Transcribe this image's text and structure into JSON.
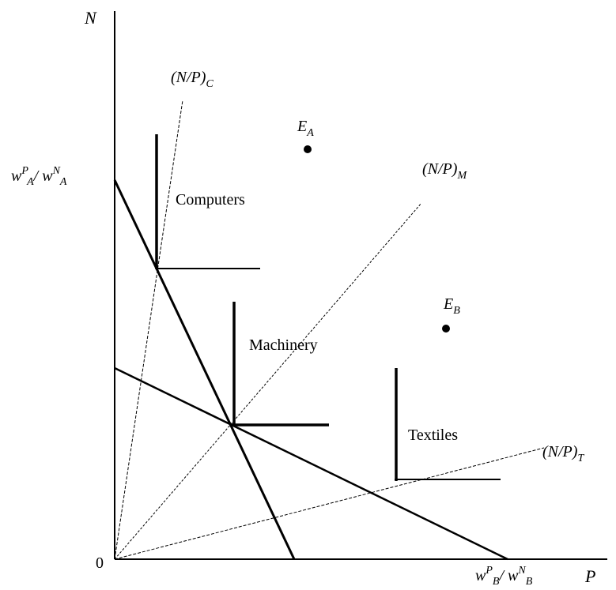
{
  "axes": {
    "y_label": "N",
    "x_label": "P",
    "origin_label": "0"
  },
  "rays": {
    "computers": {
      "base": "(N/P)",
      "sub": "C"
    },
    "machinery": {
      "base": "(N/P)",
      "sub": "M"
    },
    "textiles": {
      "base": "(N/P)",
      "sub": "T"
    }
  },
  "isoquants": {
    "computers": "Computers",
    "machinery": "Machinery",
    "textiles": "Textiles"
  },
  "endowments": {
    "a": {
      "base": "E",
      "sub": "A"
    },
    "b": {
      "base": "E",
      "sub": "B"
    }
  },
  "wage_ratios": {
    "a": {
      "w1": "w",
      "sup1": "P",
      "sub1": "A",
      "slash": "/ ",
      "w2": "w",
      "sup2": "N",
      "sub2": "A"
    },
    "b": {
      "w1": "w",
      "sup1": "P",
      "sub1": "B",
      "slash": "/ ",
      "w2": "w",
      "sup2": "N",
      "sub2": "B"
    }
  }
}
